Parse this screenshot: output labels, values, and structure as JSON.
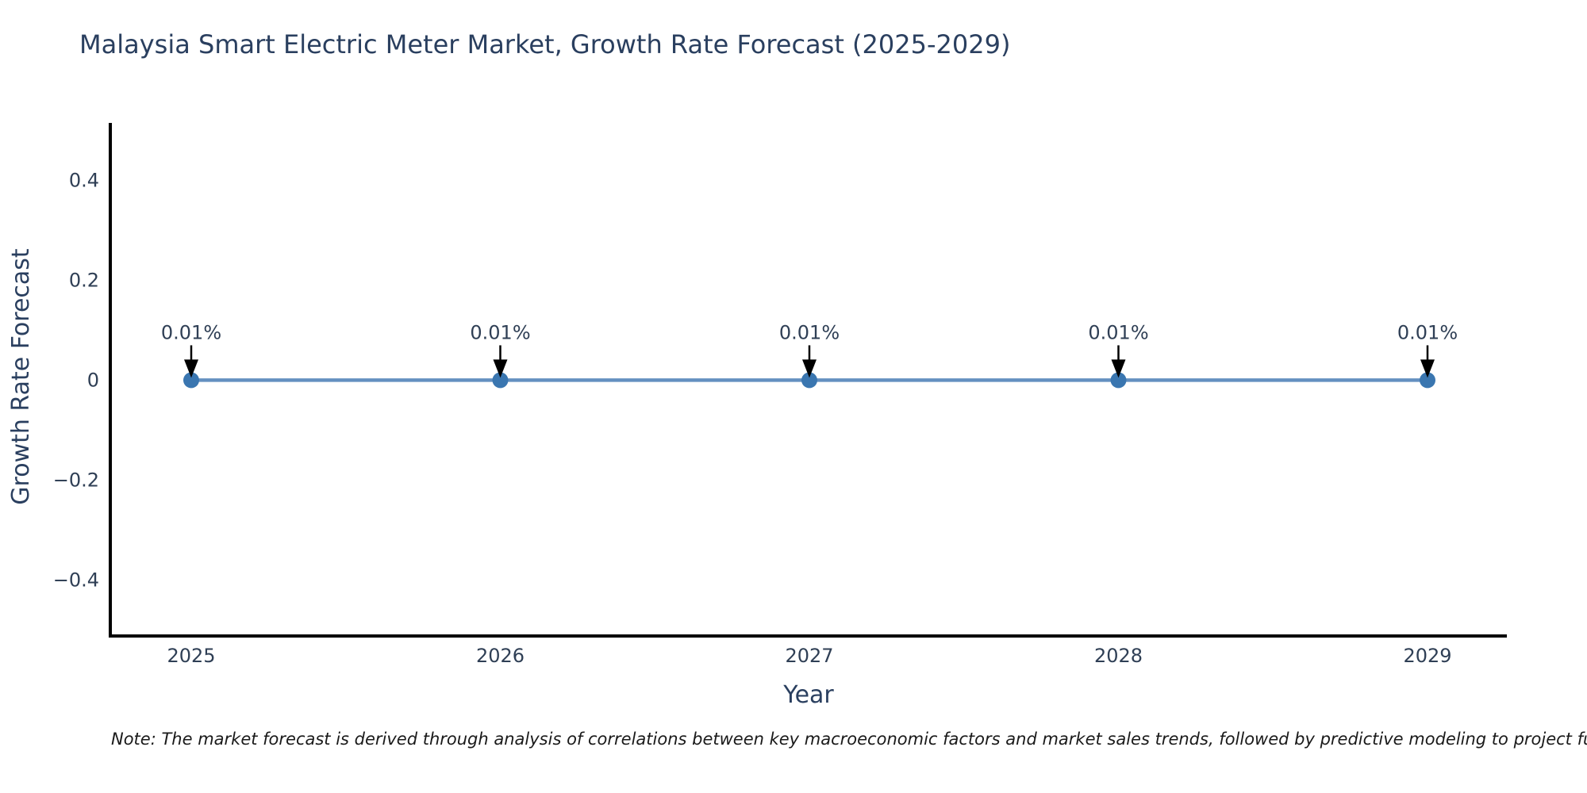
{
  "note": "Note: The market forecast is derived through analysis of correlations between key macroeconomic factors and market sales trends, followed by predictive modeling to project future sa",
  "chart_data": {
    "type": "line",
    "title": "Malaysia Smart Electric Meter Market, Growth Rate Forecast (2025-2029)",
    "xlabel": "Year",
    "ylabel": "Growth Rate Forecast",
    "x": [
      "2025",
      "2026",
      "2027",
      "2028",
      "2029"
    ],
    "series": [
      {
        "name": "Growth Rate Forecast",
        "values": [
          0.0001,
          0.0001,
          0.0001,
          0.0001,
          0.0001
        ]
      }
    ],
    "point_labels": [
      "0.01%",
      "0.01%",
      "0.01%",
      "0.01%",
      "0.01%"
    ],
    "ylim": [
      -0.512,
      0.512
    ],
    "yticks": {
      "values": [
        0.4,
        0.2,
        0,
        -0.2,
        -0.4
      ],
      "labels": [
        "0.4",
        "0.2",
        "0",
        "−0.2",
        "−0.4"
      ]
    },
    "grid": false,
    "legend": false,
    "annotations_have_arrows": true,
    "colors": {
      "line": "#6490c0",
      "marker": "#3a76b0",
      "axis": "#000000",
      "text": "#2f3f55",
      "arrow": "#000000"
    }
  }
}
